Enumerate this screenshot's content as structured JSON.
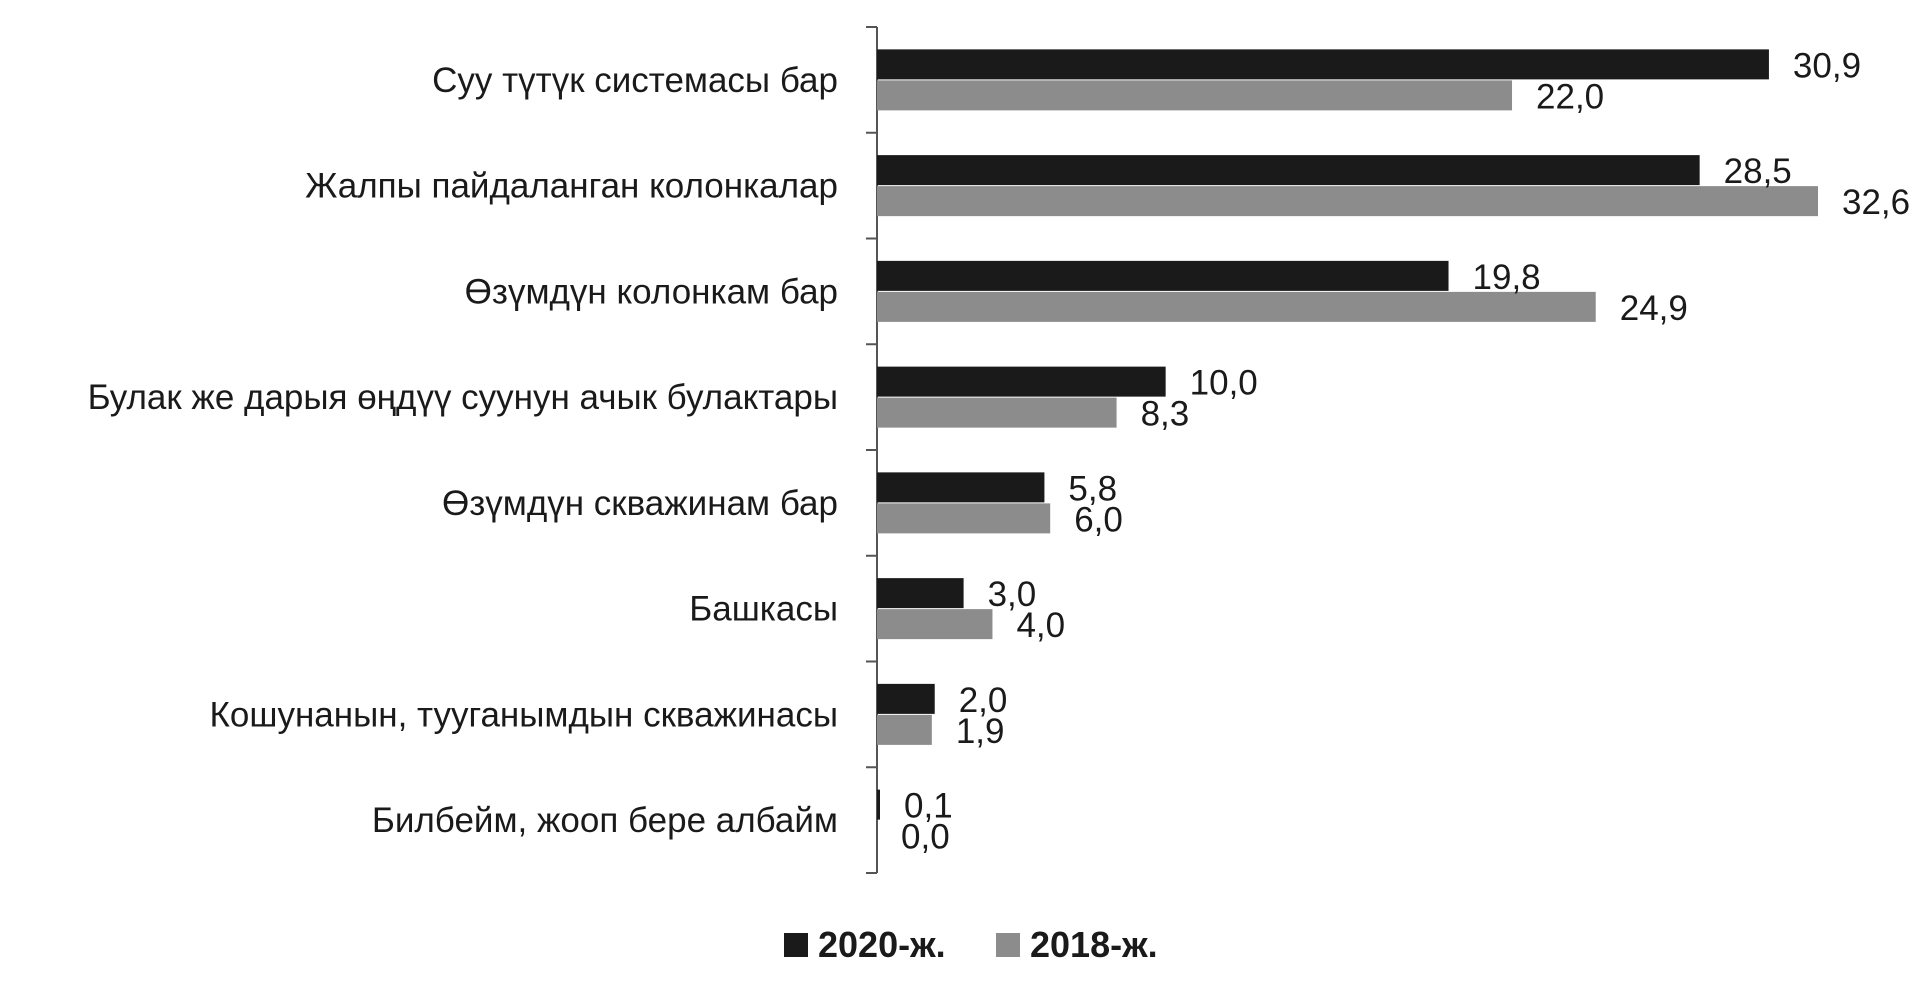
{
  "chart_data": {
    "type": "bar",
    "orientation": "horizontal",
    "categories": [
      "Суу түтүк системасы бар",
      "Жалпы пайдаланган колонкалар",
      "Өзүмдүн колонкам бар",
      "Булак же дарыя өңдүү суунун ачык булактары",
      "Өзүмдүн скважинам бар",
      "Башкасы",
      "Кошунанын, тууганымдын скважинасы",
      "Билбейм, жооп бере албайм"
    ],
    "series": [
      {
        "name": "2020-ж.",
        "color": "#1a1a1a",
        "values": [
          30.9,
          28.5,
          19.8,
          10.0,
          5.8,
          3.0,
          2.0,
          0.1
        ],
        "labels": [
          "30,9",
          "28,5",
          "19,8",
          "10,0",
          "5,8",
          "3,0",
          "2,0",
          "0,1"
        ]
      },
      {
        "name": "2018-ж.",
        "color": "#8c8c8c",
        "values": [
          22.0,
          32.6,
          24.9,
          8.3,
          6.0,
          4.0,
          1.9,
          0.0
        ],
        "labels": [
          "22,0",
          "32,6",
          "24,9",
          "8,3",
          "6,0",
          "4,0",
          "1,9",
          "0,0"
        ]
      }
    ],
    "xlim": [
      0,
      32.6
    ],
    "grid": false,
    "legend_position": "bottom"
  }
}
